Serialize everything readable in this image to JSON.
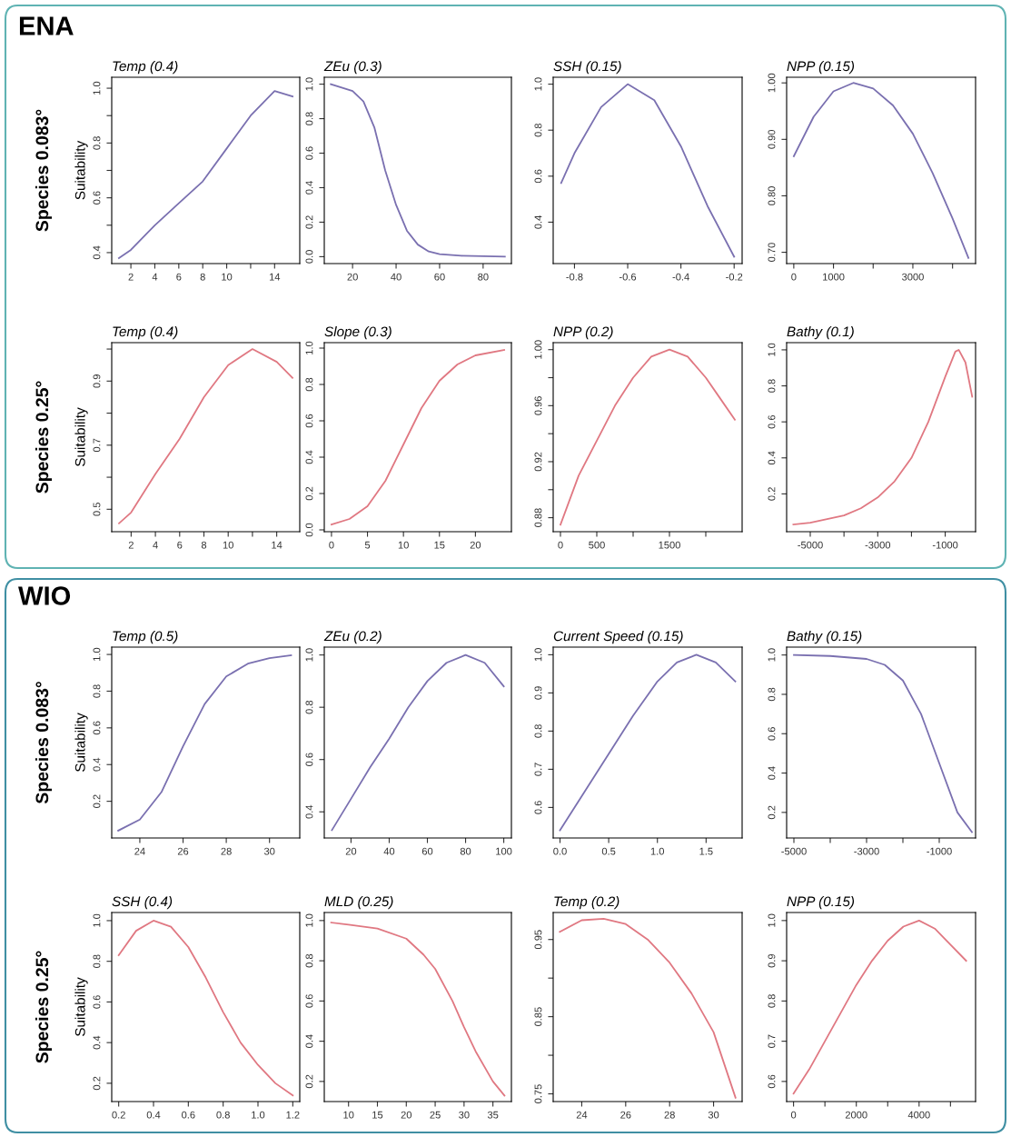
{
  "chart_data": [
    {
      "type": "line",
      "title": "Temp (0.4)",
      "ylabel": "Suitability",
      "annotations": [
        "Species 0.083°",
        "ENA"
      ],
      "x": [
        1,
        2,
        4,
        6,
        8,
        10,
        12,
        14,
        15.5
      ],
      "series": [
        {
          "color": "#7a70b0",
          "values": [
            0.38,
            0.41,
            0.5,
            0.58,
            0.66,
            0.78,
            0.9,
            0.99,
            0.97
          ]
        }
      ],
      "xlim": [
        0.4,
        16.1
      ],
      "ylim": [
        0.36,
        1.04
      ],
      "xticks": [
        2,
        4,
        6,
        8,
        10,
        {
          "value": 12,
          "label": null
        },
        14
      ],
      "yticks": [
        0.4,
        {
          "value": 0.5,
          "label": null
        },
        0.6,
        {
          "value": 0.7,
          "label": null
        },
        0.8,
        {
          "value": 0.9,
          "label": null
        },
        {
          "value": 1,
          "label": "1.0"
        }
      ]
    },
    {
      "type": "line",
      "title": "ZEu (0.3)",
      "x": [
        10,
        20,
        25,
        30,
        35,
        40,
        45,
        50,
        55,
        60,
        70,
        90
      ],
      "series": [
        {
          "color": "#7a70b0",
          "values": [
            1.0,
            0.96,
            0.9,
            0.75,
            0.5,
            0.3,
            0.15,
            0.07,
            0.03,
            0.015,
            0.005,
            0.0
          ]
        }
      ],
      "xlim": [
        7,
        93
      ],
      "ylim": [
        -0.04,
        1.04
      ],
      "xticks": [
        20,
        40,
        60,
        80
      ],
      "yticks": [
        {
          "value": 0,
          "label": "0.0"
        },
        0.2,
        0.4,
        0.6,
        0.8,
        {
          "value": 1,
          "label": "1.0"
        }
      ]
    },
    {
      "type": "line",
      "title": "SSH (0.15)",
      "x": [
        -0.85,
        -0.8,
        -0.7,
        -0.6,
        -0.5,
        -0.4,
        -0.3,
        -0.2
      ],
      "series": [
        {
          "color": "#7a70b0",
          "values": [
            0.57,
            0.7,
            0.9,
            1.0,
            0.93,
            0.73,
            0.47,
            0.25
          ]
        }
      ],
      "xlim": [
        -0.88,
        -0.17
      ],
      "ylim": [
        0.22,
        1.03
      ],
      "xticks": [
        -0.8,
        -0.6,
        -0.4,
        -0.2
      ],
      "yticks": [
        0.4,
        0.6,
        0.8,
        {
          "value": 1,
          "label": "1.0"
        }
      ]
    },
    {
      "type": "line",
      "title": "NPP (0.15)",
      "x": [
        0,
        500,
        1000,
        1500,
        2000,
        2500,
        3000,
        3500,
        4000,
        4400
      ],
      "series": [
        {
          "color": "#7a70b0",
          "values": [
            0.87,
            0.94,
            0.985,
            1.0,
            0.99,
            0.96,
            0.91,
            0.84,
            0.76,
            0.69
          ]
        }
      ],
      "xlim": [
        -180,
        4580
      ],
      "ylim": [
        0.68,
        1.01
      ],
      "xticks": [
        0,
        1000,
        {
          "value": 2000,
          "label": null
        },
        3000,
        {
          "value": 4000,
          "label": null
        }
      ],
      "yticks": [
        {
          "value": 0.7,
          "label": "0.70"
        },
        {
          "value": 0.8,
          "label": "0.80"
        },
        {
          "value": 0.9,
          "label": "0.90"
        },
        {
          "value": 1,
          "label": "1.00"
        }
      ]
    },
    {
      "type": "line",
      "title": "Temp (0.4)",
      "ylabel": "Suitability",
      "annotations": [
        "Species 0.25°"
      ],
      "x": [
        1,
        2,
        4,
        6,
        8,
        10,
        12,
        14,
        15.3
      ],
      "series": [
        {
          "color": "#e07882",
          "values": [
            0.456,
            0.49,
            0.61,
            0.72,
            0.85,
            0.95,
            1.0,
            0.96,
            0.91
          ]
        }
      ],
      "xlim": [
        0.4,
        15.9
      ],
      "ylim": [
        0.43,
        1.02
      ],
      "xticks": [
        2,
        4,
        6,
        8,
        10,
        {
          "value": 12,
          "label": null
        },
        14
      ],
      "yticks": [
        0.5,
        {
          "value": 0.6,
          "label": null
        },
        0.7,
        {
          "value": 0.8,
          "label": null
        },
        0.9,
        {
          "value": 1,
          "label": null
        }
      ]
    },
    {
      "type": "line",
      "title": "Slope (0.3)",
      "x": [
        0,
        2.5,
        5,
        7.5,
        10,
        12.5,
        15,
        17.5,
        20,
        24
      ],
      "series": [
        {
          "color": "#e07882",
          "values": [
            0.03,
            0.06,
            0.13,
            0.27,
            0.47,
            0.67,
            0.82,
            0.91,
            0.96,
            0.99
          ]
        }
      ],
      "xlim": [
        -1,
        25
      ],
      "ylim": [
        -0.01,
        1.03
      ],
      "xticks": [
        0,
        5,
        10,
        15,
        20
      ],
      "yticks": [
        {
          "value": 0,
          "label": "0.0"
        },
        0.2,
        0.4,
        0.6,
        0.8,
        {
          "value": 1,
          "label": "1.0"
        }
      ]
    },
    {
      "type": "line",
      "title": "NPP (0.2)",
      "x": [
        0,
        250,
        500,
        750,
        1000,
        1250,
        1500,
        1750,
        2000,
        2200,
        2400
      ],
      "series": [
        {
          "color": "#e07882",
          "values": [
            0.875,
            0.91,
            0.935,
            0.96,
            0.98,
            0.995,
            1.0,
            0.995,
            0.98,
            0.965,
            0.95
          ]
        }
      ],
      "xlim": [
        -100,
        2500
      ],
      "ylim": [
        0.87,
        1.005
      ],
      "xticks": [
        0,
        500,
        {
          "value": 1000,
          "label": null
        },
        1500,
        {
          "value": 2000,
          "label": null
        }
      ],
      "yticks": [
        0.88,
        {
          "value": 0.9,
          "label": null
        },
        0.92,
        {
          "value": 0.94,
          "label": null
        },
        0.96,
        {
          "value": 0.98,
          "label": null
        },
        {
          "value": 1,
          "label": "1.00"
        }
      ]
    },
    {
      "type": "line",
      "title": "Bathy (0.1)",
      "x": [
        -5500,
        -5000,
        -4500,
        -4000,
        -3500,
        -3000,
        -2500,
        -2000,
        -1500,
        -1000,
        -700,
        -600,
        -400,
        -200
      ],
      "series": [
        {
          "color": "#e07882",
          "values": [
            0.03,
            0.04,
            0.06,
            0.08,
            0.12,
            0.18,
            0.27,
            0.4,
            0.6,
            0.85,
            0.99,
            1.0,
            0.93,
            0.74
          ]
        }
      ],
      "xlim": [
        -5700,
        -100
      ],
      "ylim": [
        -0.01,
        1.04
      ],
      "xticks": [
        -5000,
        {
          "value": -4000,
          "label": null
        },
        -3000,
        {
          "value": -2000,
          "label": null
        },
        -1000
      ],
      "yticks": [
        0.2,
        0.4,
        0.6,
        0.8,
        {
          "value": 1,
          "label": "1.0"
        }
      ]
    },
    {
      "type": "line",
      "title": "Temp (0.5)",
      "ylabel": "Suitability",
      "annotations": [
        "Species 0.083°",
        "WIO"
      ],
      "x": [
        23,
        24,
        25,
        26,
        27,
        28,
        29,
        30,
        31
      ],
      "series": [
        {
          "color": "#7a70b0",
          "values": [
            0.04,
            0.1,
            0.25,
            0.5,
            0.73,
            0.88,
            0.95,
            0.98,
            0.995
          ]
        }
      ],
      "xlim": [
        22.7,
        31.4
      ],
      "ylim": [
        0.0,
        1.04
      ],
      "xticks": [
        24,
        26,
        28,
        30
      ],
      "yticks": [
        0.2,
        0.4,
        0.6,
        0.8,
        {
          "value": 1,
          "label": "1.0"
        }
      ]
    },
    {
      "type": "line",
      "title": "ZEu (0.2)",
      "x": [
        10,
        20,
        30,
        40,
        50,
        60,
        70,
        80,
        90,
        100
      ],
      "series": [
        {
          "color": "#7a70b0",
          "values": [
            0.33,
            0.45,
            0.57,
            0.68,
            0.8,
            0.9,
            0.97,
            1.0,
            0.97,
            0.88
          ]
        }
      ],
      "xlim": [
        6,
        104
      ],
      "ylim": [
        0.3,
        1.03
      ],
      "xticks": [
        20,
        40,
        60,
        80,
        100
      ],
      "yticks": [
        0.4,
        0.6,
        0.8,
        {
          "value": 1,
          "label": "1.0"
        }
      ]
    },
    {
      "type": "line",
      "title": "Current Speed (0.15)",
      "x": [
        0,
        0.25,
        0.5,
        0.75,
        1.0,
        1.2,
        1.4,
        1.6,
        1.8
      ],
      "series": [
        {
          "color": "#7a70b0",
          "values": [
            0.54,
            0.64,
            0.74,
            0.84,
            0.93,
            0.98,
            1.0,
            0.98,
            0.93
          ]
        }
      ],
      "xlim": [
        -0.07,
        1.87
      ],
      "ylim": [
        0.52,
        1.02
      ],
      "xticks": [
        {
          "value": 0,
          "label": "0.0"
        },
        0.5,
        {
          "value": 1,
          "label": "1.0"
        },
        1.5
      ],
      "yticks": [
        0.6,
        0.7,
        0.8,
        0.9,
        {
          "value": 1,
          "label": "1.0"
        }
      ]
    },
    {
      "type": "line",
      "title": "Bathy (0.15)",
      "x": [
        -5000,
        -4000,
        -3000,
        -2500,
        -2000,
        -1500,
        -1000,
        -500,
        -100
      ],
      "series": [
        {
          "color": "#7a70b0",
          "values": [
            1.0,
            0.995,
            0.98,
            0.95,
            0.87,
            0.7,
            0.45,
            0.2,
            0.1
          ]
        }
      ],
      "xlim": [
        -5200,
        0
      ],
      "ylim": [
        0.07,
        1.04
      ],
      "xticks": [
        -5000,
        {
          "value": -4000,
          "label": null
        },
        -3000,
        {
          "value": -2000,
          "label": null
        },
        -1000
      ],
      "yticks": [
        0.2,
        0.4,
        0.6,
        0.8,
        {
          "value": 1,
          "label": "1.0"
        }
      ]
    },
    {
      "type": "line",
      "title": "SSH (0.4)",
      "ylabel": "Suitability",
      "annotations": [
        "Species 0.25°"
      ],
      "x": [
        0.2,
        0.3,
        0.4,
        0.5,
        0.6,
        0.7,
        0.8,
        0.9,
        1.0,
        1.1,
        1.2
      ],
      "series": [
        {
          "color": "#e07882",
          "values": [
            0.83,
            0.95,
            1.0,
            0.97,
            0.87,
            0.72,
            0.55,
            0.4,
            0.29,
            0.2,
            0.14
          ]
        }
      ],
      "xlim": [
        0.16,
        1.24
      ],
      "ylim": [
        0.11,
        1.04
      ],
      "xticks": [
        0.2,
        0.4,
        0.6,
        0.8,
        {
          "value": 1,
          "label": "1.0"
        },
        1.2
      ],
      "yticks": [
        0.2,
        0.4,
        0.6,
        0.8,
        {
          "value": 1,
          "label": "1.0"
        }
      ]
    },
    {
      "type": "line",
      "title": "MLD (0.25)",
      "x": [
        7,
        10,
        15,
        20,
        23,
        25,
        28,
        30,
        32,
        35,
        37
      ],
      "series": [
        {
          "color": "#e07882",
          "values": [
            0.99,
            0.98,
            0.96,
            0.91,
            0.83,
            0.76,
            0.6,
            0.47,
            0.35,
            0.2,
            0.13
          ]
        }
      ],
      "xlim": [
        5.8,
        38.2
      ],
      "ylim": [
        0.1,
        1.04
      ],
      "xticks": [
        10,
        15,
        20,
        25,
        30,
        35
      ],
      "yticks": [
        0.2,
        0.4,
        0.6,
        0.8,
        {
          "value": 1,
          "label": "1.0"
        }
      ]
    },
    {
      "type": "line",
      "title": "Temp (0.2)",
      "x": [
        23,
        24,
        25,
        26,
        27,
        28,
        29,
        30,
        31
      ],
      "series": [
        {
          "color": "#e07882",
          "values": [
            0.96,
            0.975,
            0.977,
            0.97,
            0.95,
            0.92,
            0.88,
            0.83,
            0.745
          ]
        }
      ],
      "xlim": [
        22.7,
        31.3
      ],
      "ylim": [
        0.74,
        0.985
      ],
      "xticks": [
        24,
        26,
        28,
        30
      ],
      "yticks": [
        0.75,
        {
          "value": 0.8,
          "label": null
        },
        0.85,
        {
          "value": 0.9,
          "label": null
        },
        0.95
      ]
    },
    {
      "type": "line",
      "title": "NPP (0.15)",
      "x": [
        0,
        500,
        1000,
        1500,
        2000,
        2500,
        3000,
        3500,
        4000,
        4500,
        5000,
        5500
      ],
      "series": [
        {
          "color": "#e07882",
          "values": [
            0.57,
            0.63,
            0.7,
            0.77,
            0.84,
            0.9,
            0.95,
            0.985,
            1.0,
            0.98,
            0.94,
            0.9
          ]
        }
      ],
      "xlim": [
        -220,
        5800
      ],
      "ylim": [
        0.55,
        1.02
      ],
      "xticks": [
        0,
        {
          "value": 1000,
          "label": null
        },
        2000,
        {
          "value": 3000,
          "label": null
        },
        4000,
        {
          "value": 5000,
          "label": null
        }
      ],
      "yticks": [
        0.6,
        0.7,
        0.8,
        0.9,
        {
          "value": 1,
          "label": "1.0"
        }
      ]
    }
  ]
}
